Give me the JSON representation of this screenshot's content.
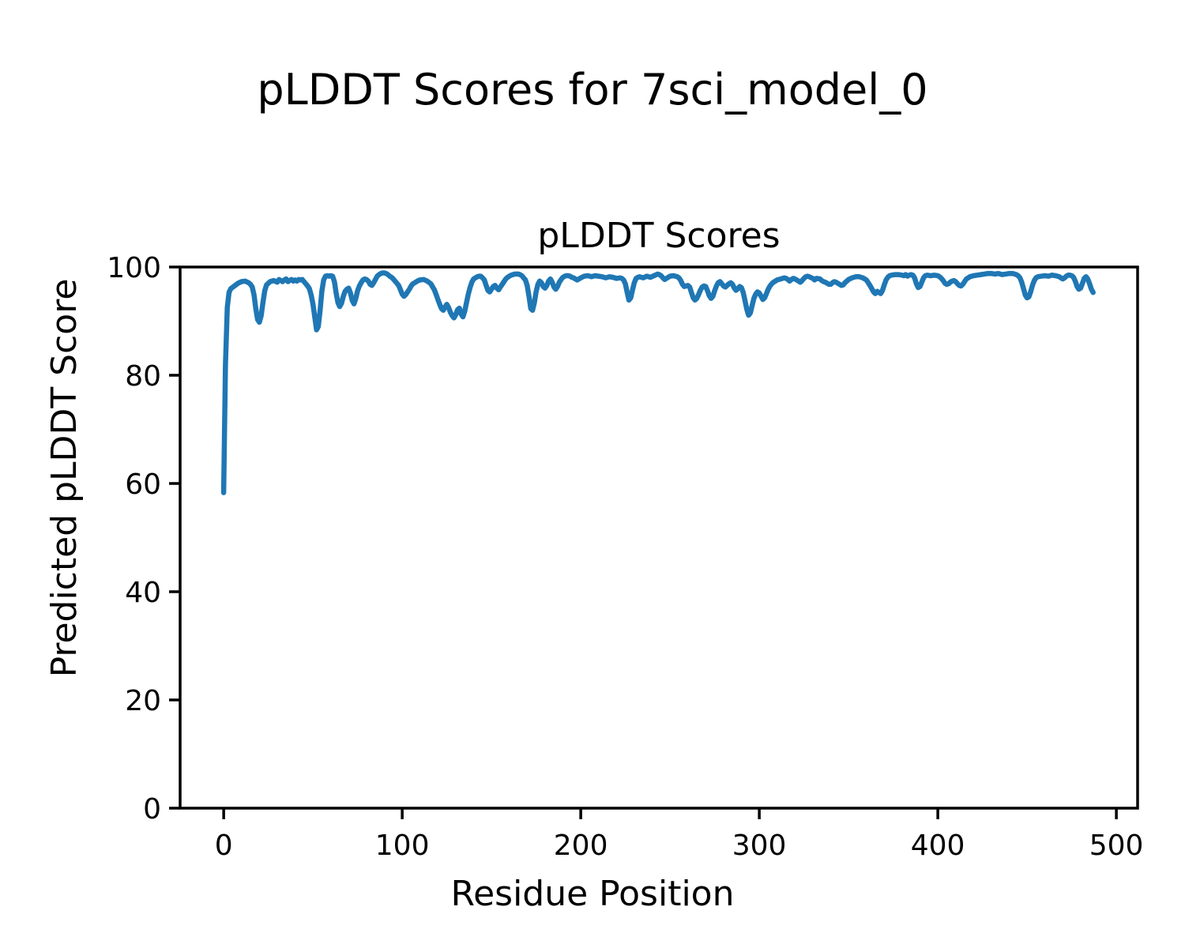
{
  "figure": {
    "suptitle": "pLDDT Scores for 7sci_model_0",
    "background": "#ffffff",
    "text_color": "#000000"
  },
  "chart_data": {
    "type": "line",
    "title": "pLDDT Scores",
    "xlabel": "Residue Position",
    "ylabel": "Predicted pLDDT Score",
    "xlim": [
      -24.4,
      511.9
    ],
    "ylim": [
      0,
      100
    ],
    "xticks": [
      0,
      100,
      200,
      300,
      400,
      500
    ],
    "yticks": [
      0,
      20,
      40,
      60,
      80,
      100
    ],
    "grid": false,
    "legend_position": "none",
    "line_color": "#1f77b4",
    "series": [
      {
        "name": "pLDDT",
        "x": [
          0,
          1,
          2,
          3,
          4,
          6,
          8,
          10,
          12,
          14,
          15,
          16,
          17,
          18,
          19,
          20,
          21,
          22,
          23,
          24,
          26,
          28,
          30,
          31,
          32,
          33,
          34,
          35,
          36,
          37,
          38,
          39,
          40,
          41,
          42,
          43,
          44,
          45,
          46,
          47,
          48,
          49,
          50,
          51,
          52,
          53,
          54,
          55,
          56,
          57,
          58,
          59,
          60,
          61,
          62,
          63,
          64,
          65,
          66,
          67,
          68,
          69,
          70,
          71,
          72,
          73,
          74,
          75,
          76,
          77,
          78,
          79,
          80,
          81,
          82,
          83,
          84,
          85,
          86,
          87,
          88,
          89,
          90,
          91,
          92,
          93,
          94,
          95,
          96,
          97,
          98,
          99,
          100,
          101,
          102,
          103,
          104,
          105,
          106,
          107,
          108,
          109,
          110,
          112,
          114,
          116,
          118,
          119,
          120,
          121,
          122,
          123,
          124,
          125,
          126,
          127,
          128,
          129,
          130,
          131,
          132,
          133,
          134,
          135,
          136,
          137,
          138,
          139,
          140,
          141,
          142,
          143,
          144,
          145,
          146,
          147,
          148,
          149,
          150,
          151,
          152,
          153,
          154,
          155,
          156,
          157,
          158,
          159,
          160,
          161,
          162,
          163,
          164,
          165,
          166,
          167,
          168,
          169,
          170,
          171,
          172,
          173,
          174,
          175,
          176,
          177,
          178,
          179,
          180,
          181,
          182,
          183,
          184,
          185,
          186,
          187,
          188,
          189,
          190,
          191,
          192,
          193,
          194,
          195,
          196,
          197,
          198,
          199,
          200,
          202,
          204,
          206,
          208,
          210,
          212,
          214,
          216,
          218,
          220,
          222,
          223,
          224,
          225,
          226,
          227,
          228,
          229,
          230,
          231,
          232,
          233,
          235,
          237,
          239,
          241,
          243,
          244,
          245,
          246,
          247,
          248,
          249,
          250,
          252,
          254,
          255,
          256,
          257,
          258,
          259,
          260,
          261,
          262,
          263,
          264,
          265,
          266,
          267,
          268,
          269,
          270,
          271,
          272,
          273,
          274,
          275,
          276,
          277,
          278,
          279,
          280,
          281,
          282,
          283,
          284,
          285,
          286,
          287,
          288,
          289,
          290,
          291,
          292,
          293,
          294,
          295,
          296,
          297,
          298,
          299,
          300,
          301,
          302,
          303,
          304,
          305,
          306,
          307,
          308,
          309,
          310,
          312,
          314,
          315,
          316,
          317,
          318,
          319,
          320,
          322,
          323,
          324,
          325,
          326,
          327,
          328,
          330,
          331,
          332,
          334,
          335,
          336,
          337,
          338,
          339,
          340,
          341,
          342,
          343,
          344,
          345,
          346,
          347,
          348,
          349,
          350,
          352,
          354,
          356,
          358,
          360,
          361,
          362,
          363,
          364,
          365,
          366,
          367,
          368,
          369,
          370,
          371,
          372,
          373,
          374,
          376,
          378,
          380,
          381,
          382,
          383,
          384,
          385,
          386,
          387,
          388,
          389,
          390,
          391,
          392,
          393,
          394,
          396,
          398,
          400,
          401,
          402,
          403,
          404,
          405,
          406,
          407,
          408,
          409,
          410,
          411,
          412,
          413,
          414,
          415,
          416,
          417,
          418,
          420,
          422,
          424,
          426,
          428,
          430,
          432,
          434,
          436,
          438,
          440,
          442,
          444,
          445,
          446,
          447,
          448,
          449,
          450,
          451,
          452,
          453,
          454,
          455,
          456,
          458,
          460,
          462,
          464,
          466,
          468,
          469,
          470,
          471,
          472,
          473,
          474,
          475,
          476,
          477,
          478,
          479,
          480,
          481,
          482,
          483,
          484,
          485,
          486,
          487
        ],
        "y": [
          58.3,
          82,
          92.5,
          95.3,
          96.0,
          96.5,
          97.0,
          97.3,
          97.4,
          97.1,
          96.8,
          96.3,
          94.8,
          92.3,
          90.3,
          89.8,
          91.0,
          93.5,
          95.6,
          96.7,
          97.3,
          97.5,
          97.2,
          97.7,
          97.5,
          97.3,
          97.6,
          97.8,
          97.3,
          97.5,
          97.7,
          97.4,
          97.6,
          97.4,
          97.7,
          97.6,
          97.7,
          97.3,
          96.9,
          96.5,
          96.0,
          94.8,
          93.2,
          90.8,
          88.4,
          89.0,
          92.0,
          95.5,
          97.6,
          98.3,
          98.4,
          98.3,
          98.4,
          98.3,
          97.3,
          95.2,
          93.4,
          92.7,
          93.3,
          94.6,
          95.5,
          95.9,
          96.1,
          95.2,
          93.8,
          93.2,
          94.2,
          95.6,
          96.5,
          97.1,
          97.6,
          97.8,
          97.7,
          97.4,
          96.8,
          96.6,
          97.1,
          97.7,
          98.3,
          98.6,
          98.8,
          98.9,
          98.9,
          98.8,
          98.6,
          98.3,
          98.1,
          97.8,
          97.4,
          97.0,
          96.6,
          95.8,
          95.0,
          94.6,
          94.9,
          95.4,
          95.9,
          96.5,
          96.9,
          97.1,
          97.3,
          97.5,
          97.6,
          97.7,
          97.4,
          96.9,
          95.8,
          94.9,
          94.0,
          93.1,
          92.3,
          92.0,
          92.6,
          93.1,
          92.5,
          91.6,
          91.0,
          90.6,
          91.2,
          92.1,
          92.4,
          91.3,
          90.8,
          91.8,
          93.4,
          95.0,
          96.2,
          97.2,
          97.8,
          98.0,
          98.2,
          98.3,
          98.3,
          98.0,
          97.6,
          96.6,
          95.7,
          95.4,
          95.9,
          96.4,
          96.6,
          96.1,
          95.8,
          96.3,
          96.8,
          97.3,
          97.8,
          98.1,
          98.3,
          98.5,
          98.6,
          98.7,
          98.7,
          98.7,
          98.6,
          98.4,
          98.0,
          97.6,
          96.6,
          94.6,
          92.3,
          92.0,
          93.4,
          95.4,
          96.8,
          97.4,
          97.1,
          96.4,
          96.1,
          96.6,
          97.4,
          97.8,
          97.2,
          96.3,
          95.9,
          96.4,
          97.2,
          97.7,
          98.1,
          98.3,
          98.4,
          98.4,
          98.3,
          98.1,
          98.0,
          97.8,
          97.6,
          97.8,
          98.0,
          98.3,
          98.4,
          98.2,
          98.4,
          98.3,
          98.2,
          98.0,
          98.2,
          98.1,
          97.9,
          98.0,
          97.9,
          97.6,
          96.9,
          95.3,
          93.9,
          94.3,
          95.8,
          97.1,
          97.9,
          98.1,
          98.2,
          98.0,
          98.3,
          98.1,
          98.4,
          98.7,
          98.6,
          98.4,
          98.0,
          97.7,
          97.9,
          98.1,
          98.3,
          98.4,
          98.2,
          98.0,
          97.5,
          96.8,
          96.4,
          96.5,
          96.6,
          96.3,
          95.3,
          94.3,
          93.9,
          94.2,
          94.9,
          95.7,
          96.3,
          96.5,
          96.4,
          95.6,
          94.7,
          94.2,
          94.6,
          95.6,
          96.5,
          97.1,
          97.3,
          96.9,
          96.5,
          96.3,
          96.6,
          96.9,
          97.1,
          96.8,
          96.1,
          95.7,
          96.0,
          96.4,
          96.2,
          95.3,
          93.8,
          92.2,
          91.1,
          91.5,
          92.9,
          94.2,
          95.0,
          95.4,
          95.2,
          94.6,
          94.0,
          94.3,
          95.1,
          95.9,
          96.5,
          96.9,
          97.2,
          97.4,
          97.6,
          97.8,
          98.0,
          97.9,
          97.7,
          97.4,
          97.7,
          97.9,
          97.8,
          97.4,
          97.2,
          97.5,
          97.9,
          98.2,
          98.3,
          98.2,
          97.9,
          97.6,
          97.9,
          97.8,
          97.5,
          97.3,
          97.2,
          97.0,
          96.8,
          96.8,
          97.1,
          97.3,
          97.2,
          97.0,
          96.8,
          96.6,
          96.7,
          97.1,
          97.4,
          97.7,
          98.0,
          98.2,
          98.2,
          98.0,
          97.6,
          97.1,
          96.6,
          96.0,
          95.4,
          95.1,
          95.5,
          95.3,
          95.1,
          95.7,
          96.7,
          97.6,
          98.1,
          98.4,
          98.5,
          98.6,
          98.6,
          98.5,
          98.4,
          98.6,
          98.3,
          98.5,
          98.6,
          98.5,
          98.0,
          96.9,
          96.2,
          96.4,
          97.2,
          98.0,
          98.4,
          98.5,
          98.4,
          98.5,
          98.4,
          98.2,
          97.9,
          97.5,
          97.0,
          96.8,
          96.9,
          97.2,
          97.4,
          97.5,
          97.3,
          96.9,
          96.6,
          96.5,
          96.8,
          97.3,
          97.8,
          98.0,
          98.2,
          98.4,
          98.5,
          98.6,
          98.7,
          98.8,
          98.8,
          98.7,
          98.8,
          98.6,
          98.7,
          98.8,
          98.8,
          98.6,
          98.4,
          98.0,
          97.2,
          96.0,
          94.8,
          94.3,
          94.5,
          95.4,
          96.6,
          97.5,
          98.0,
          98.2,
          98.3,
          98.4,
          98.3,
          98.5,
          98.4,
          98.2,
          98.0,
          97.8,
          98.0,
          98.3,
          98.5,
          98.5,
          98.4,
          98.1,
          97.4,
          96.4,
          95.9,
          96.1,
          97.0,
          97.9,
          98.2,
          97.8,
          96.9,
          95.9,
          95.3
        ]
      }
    ]
  }
}
